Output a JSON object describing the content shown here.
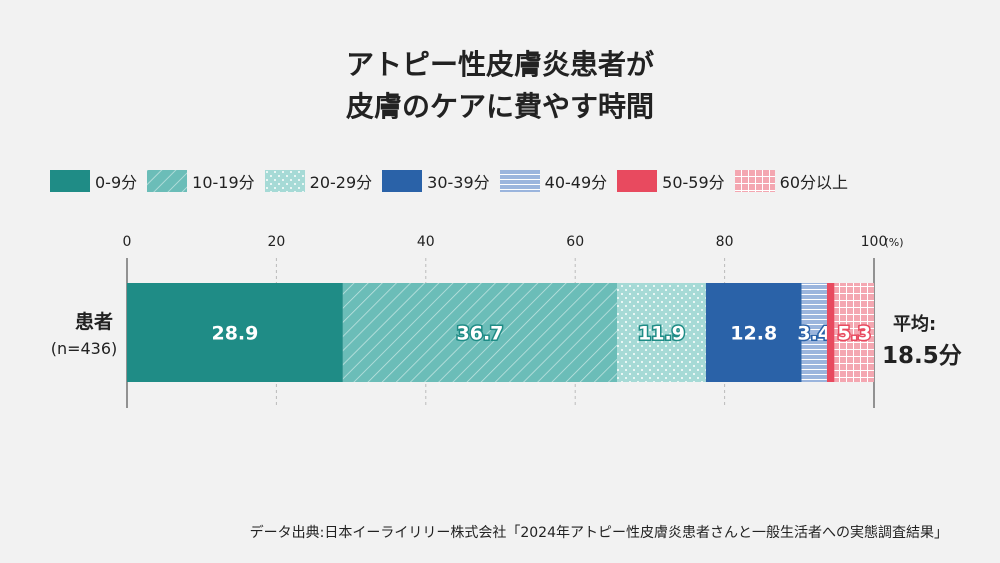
{
  "chart_data": {
    "type": "bar",
    "orientation": "horizontal-stacked",
    "title_lines": [
      "アトピー性皮膚炎患者が",
      "皮膚のケアに費やす時間"
    ],
    "categories": [
      "患者"
    ],
    "category_sublabel": "(n=436)",
    "series": [
      {
        "name": "0-9分",
        "values": [
          28.9
        ],
        "label": "28.9",
        "color": "#1f8c86",
        "pattern": "solid"
      },
      {
        "name": "10-19分",
        "values": [
          36.7
        ],
        "label": "36.7",
        "color": "#6bbdb8",
        "pattern": "diagonal"
      },
      {
        "name": "20-29分",
        "values": [
          11.9
        ],
        "label": "11.9",
        "color": "#a6dad6",
        "pattern": "dots"
      },
      {
        "name": "30-39分",
        "values": [
          12.8
        ],
        "label": "12.8",
        "color": "#2a62a8",
        "pattern": "solid"
      },
      {
        "name": "40-49分",
        "values": [
          3.4
        ],
        "label": "3.4",
        "color": "#9bb5dd",
        "pattern": "horizontal"
      },
      {
        "name": "50-59分",
        "values": [
          1.0
        ],
        "label": "",
        "color": "#e84a5f",
        "pattern": "solid"
      },
      {
        "name": "60分以上",
        "values": [
          5.3
        ],
        "label": "5.3",
        "color": "#f4a7b1",
        "pattern": "grid"
      }
    ],
    "xlim": [
      0,
      100
    ],
    "xticks": [
      "0",
      "20",
      "40",
      "60",
      "80",
      "100"
    ],
    "xunit": "(%)",
    "grid": true,
    "legend_position": "top",
    "average_label": "平均:",
    "average_value": "18.5分"
  },
  "source": "データ出典:日本イーライリリー株式会社「2024年アトピー性皮膚炎患者さんと一般生活者への実態調査結果」"
}
